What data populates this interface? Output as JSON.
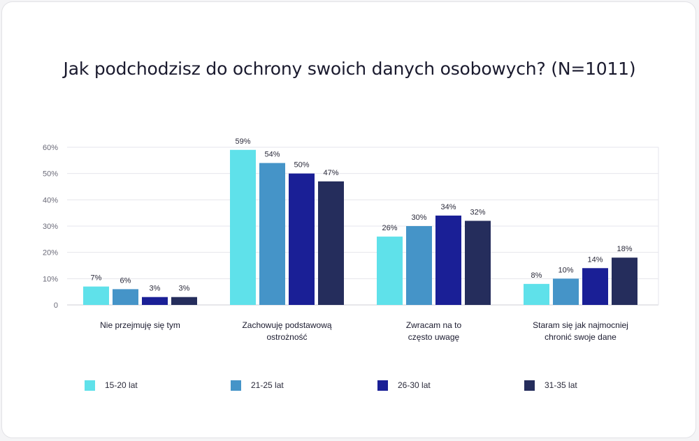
{
  "chart_data": {
    "type": "bar",
    "title": "Jak podchodzisz do ochrony swoich danych osobowych? (N=1011)",
    "categories": [
      [
        "Nie przejmuję się tym"
      ],
      [
        "Zachowuję podstawową",
        "ostrożność"
      ],
      [
        "Zwracam na to",
        "często uwagę"
      ],
      [
        "Staram się jak najmocniej",
        "chronić swoje dane"
      ]
    ],
    "series": [
      {
        "name": "15-20 lat",
        "color": "#5fe1ea",
        "values": [
          7,
          59,
          26,
          8
        ]
      },
      {
        "name": "21-25 lat",
        "color": "#4594c8",
        "values": [
          6,
          54,
          30,
          10
        ]
      },
      {
        "name": "26-30 lat",
        "color": "#1a1f96",
        "values": [
          3,
          50,
          34,
          14
        ]
      },
      {
        "name": "31-35 lat",
        "color": "#252d5c",
        "values": [
          3,
          47,
          32,
          18
        ]
      }
    ],
    "value_labels": [
      [
        "7%",
        "59%",
        "26%",
        "8%"
      ],
      [
        "6%",
        "54%",
        "30%",
        "10%"
      ],
      [
        "3%",
        "50%",
        "34%",
        "14%"
      ],
      [
        "3%",
        "47%",
        "32%",
        "18%"
      ]
    ],
    "ylim": [
      0,
      60
    ],
    "yticks": [
      0,
      10,
      20,
      30,
      40,
      50,
      60
    ],
    "ytick_labels": [
      "0",
      "10%",
      "20%",
      "30%",
      "40%",
      "50%",
      "60%"
    ],
    "grid": true,
    "legend_position": "bottom"
  }
}
